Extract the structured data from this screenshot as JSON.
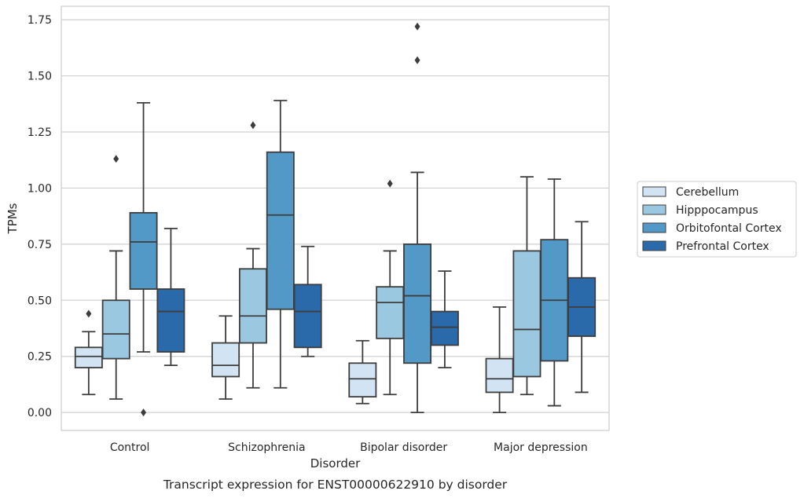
{
  "chart_data": {
    "type": "boxplot",
    "caption": "Transcript expression for ENST00000622910 by disorder",
    "xlabel": "Disorder",
    "ylabel": "TPMs",
    "ylim": [
      -0.08,
      1.81
    ],
    "yticks": [
      "0.00",
      "0.25",
      "0.50",
      "0.75",
      "1.00",
      "1.25",
      "1.50",
      "1.75"
    ],
    "grid": "horizontal",
    "legend_position": "right",
    "categories": [
      "Control",
      "Schizophrenia",
      "Bipolar disorder",
      "Major depression"
    ],
    "series": [
      {
        "name": "Cerebellum",
        "color": "#d2e3f3",
        "boxes": [
          {
            "whisker_low": 0.08,
            "q1": 0.2,
            "median": 0.25,
            "q3": 0.29,
            "whisker_high": 0.36,
            "outliers": [
              0.44
            ]
          },
          {
            "whisker_low": 0.06,
            "q1": 0.16,
            "median": 0.21,
            "q3": 0.31,
            "whisker_high": 0.43,
            "outliers": []
          },
          {
            "whisker_low": 0.04,
            "q1": 0.07,
            "median": 0.15,
            "q3": 0.22,
            "whisker_high": 0.32,
            "outliers": []
          },
          {
            "whisker_low": 0.0,
            "q1": 0.09,
            "median": 0.15,
            "q3": 0.24,
            "whisker_high": 0.47,
            "outliers": []
          }
        ]
      },
      {
        "name": "Hipppocampus",
        "color": "#9ac8e0",
        "boxes": [
          {
            "whisker_low": 0.06,
            "q1": 0.24,
            "median": 0.35,
            "q3": 0.5,
            "whisker_high": 0.72,
            "outliers": [
              1.13
            ]
          },
          {
            "whisker_low": 0.11,
            "q1": 0.31,
            "median": 0.43,
            "q3": 0.64,
            "whisker_high": 0.73,
            "outliers": [
              1.28
            ]
          },
          {
            "whisker_low": 0.08,
            "q1": 0.33,
            "median": 0.49,
            "q3": 0.56,
            "whisker_high": 0.72,
            "outliers": [
              1.02
            ]
          },
          {
            "whisker_low": 0.08,
            "q1": 0.16,
            "median": 0.37,
            "q3": 0.72,
            "whisker_high": 1.05,
            "outliers": []
          }
        ]
      },
      {
        "name": "Orbitofontal Cortex",
        "color": "#5299c8",
        "boxes": [
          {
            "whisker_low": 0.27,
            "q1": 0.55,
            "median": 0.76,
            "q3": 0.89,
            "whisker_high": 1.38,
            "outliers": [
              0.0
            ]
          },
          {
            "whisker_low": 0.11,
            "q1": 0.46,
            "median": 0.88,
            "q3": 1.16,
            "whisker_high": 1.39,
            "outliers": []
          },
          {
            "whisker_low": 0.0,
            "q1": 0.22,
            "median": 0.52,
            "q3": 0.75,
            "whisker_high": 1.07,
            "outliers": [
              1.72,
              1.57
            ]
          },
          {
            "whisker_low": 0.03,
            "q1": 0.23,
            "median": 0.5,
            "q3": 0.77,
            "whisker_high": 1.04,
            "outliers": []
          }
        ]
      },
      {
        "name": "Prefrontal Cortex",
        "color": "#2a6aab",
        "boxes": [
          {
            "whisker_low": 0.21,
            "q1": 0.27,
            "median": 0.45,
            "q3": 0.55,
            "whisker_high": 0.82,
            "outliers": []
          },
          {
            "whisker_low": 0.25,
            "q1": 0.29,
            "median": 0.45,
            "q3": 0.57,
            "whisker_high": 0.74,
            "outliers": []
          },
          {
            "whisker_low": 0.2,
            "q1": 0.3,
            "median": 0.38,
            "q3": 0.45,
            "whisker_high": 0.63,
            "outliers": []
          },
          {
            "whisker_low": 0.09,
            "q1": 0.34,
            "median": 0.47,
            "q3": 0.6,
            "whisker_high": 0.85,
            "outliers": []
          }
        ]
      }
    ]
  }
}
